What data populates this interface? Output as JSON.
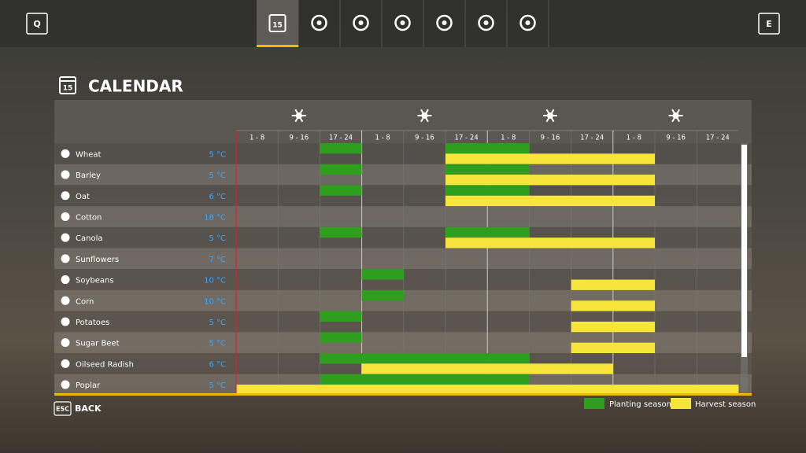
{
  "nav": {
    "left_key": "Q",
    "right_key": "E",
    "calendar_day": "15"
  },
  "header": {
    "title": "CALENDAR"
  },
  "calendar": {
    "periods": [
      "1 - 8",
      "9 - 16",
      "17 - 24",
      "1 - 8",
      "9 - 16",
      "17 - 24",
      "1 - 8",
      "9 - 16",
      "17 - 24",
      "1 - 8",
      "9 - 16",
      "17 - 24"
    ],
    "crops": [
      {
        "name": "Wheat",
        "temp": "5 °C",
        "planting": [
          [
            2,
            2
          ],
          [
            5,
            6
          ]
        ],
        "harvest": [
          [
            5,
            9
          ]
        ]
      },
      {
        "name": "Barley",
        "temp": "5 °C",
        "planting": [
          [
            2,
            2
          ],
          [
            5,
            6
          ]
        ],
        "harvest": [
          [
            5,
            9
          ]
        ]
      },
      {
        "name": "Oat",
        "temp": "6 °C",
        "planting": [
          [
            2,
            2
          ],
          [
            5,
            6
          ]
        ],
        "harvest": [
          [
            5,
            9
          ]
        ]
      },
      {
        "name": "Cotton",
        "temp": "18 °C",
        "planting": [],
        "harvest": []
      },
      {
        "name": "Canola",
        "temp": "5 °C",
        "planting": [
          [
            2,
            2
          ],
          [
            5,
            6
          ]
        ],
        "harvest": [
          [
            5,
            9
          ]
        ]
      },
      {
        "name": "Sunflowers",
        "temp": "7 °C",
        "planting": [],
        "harvest": []
      },
      {
        "name": "Soybeans",
        "temp": "10 °C",
        "planting": [
          [
            3,
            3
          ]
        ],
        "harvest": [
          [
            8,
            9
          ]
        ]
      },
      {
        "name": "Corn",
        "temp": "10 °C",
        "planting": [
          [
            3,
            3
          ]
        ],
        "harvest": [
          [
            8,
            9
          ]
        ]
      },
      {
        "name": "Potatoes",
        "temp": "5 °C",
        "planting": [
          [
            2,
            2
          ]
        ],
        "harvest": [
          [
            8,
            9
          ]
        ]
      },
      {
        "name": "Sugar Beet",
        "temp": "5 °C",
        "planting": [
          [
            2,
            2
          ]
        ],
        "harvest": [
          [
            8,
            9
          ]
        ]
      },
      {
        "name": "Oilseed Radish",
        "temp": "6 °C",
        "planting": [
          [
            2,
            6
          ]
        ],
        "harvest": [
          [
            3,
            8
          ]
        ]
      },
      {
        "name": "Poplar",
        "temp": "5 °C",
        "planting": [
          [
            2,
            6
          ]
        ],
        "harvest": [
          [
            0,
            11
          ]
        ]
      }
    ]
  },
  "legend": {
    "planting": "Planting season",
    "harvest": "Harvest season",
    "planting_color": "#2f9e1e",
    "harvest_color": "#f7e53b"
  },
  "footer": {
    "key": "ESC",
    "label": "BACK"
  }
}
